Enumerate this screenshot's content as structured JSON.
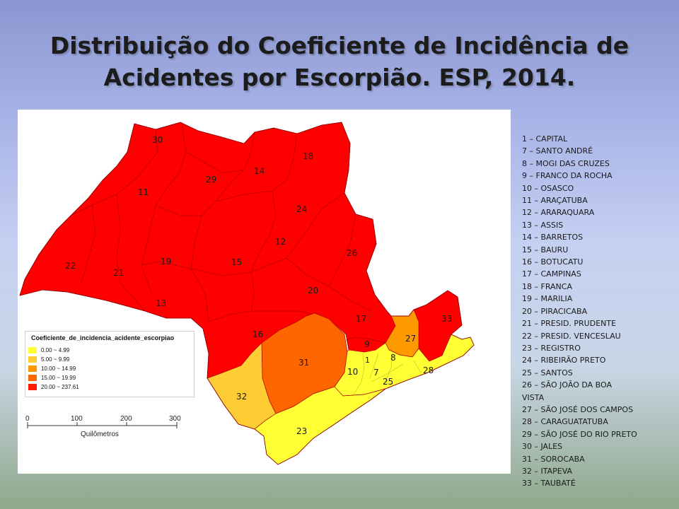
{
  "title": {
    "line1": "Distribuição do Coeficiente de Incidência de",
    "line2": "Acidentes por Escorpião. ESP, 2014."
  },
  "colors": {
    "class1": "#ffff33",
    "class2": "#ffcc33",
    "class3": "#ff9900",
    "class4": "#ff6600",
    "class5": "#ff0000",
    "border": "#b30000"
  },
  "legend": {
    "title": "Coeficiente_de_incidencia_acidente_escorpiao",
    "items": [
      {
        "label": "0.00 ~ 4.99",
        "color": "#ffff33"
      },
      {
        "label": "5.00 ~ 9.99",
        "color": "#ffcc33"
      },
      {
        "label": "10.00 ~ 14.99",
        "color": "#ff9900"
      },
      {
        "label": "15.00 ~ 19.99",
        "color": "#ff6600"
      },
      {
        "label": "20.00 ~ 237.61",
        "color": "#ff1a00"
      }
    ]
  },
  "scale_bar": {
    "ticks": [
      "0",
      "100",
      "200",
      "300"
    ],
    "unit": "Quilômetros"
  },
  "regions": [
    {
      "code": "30",
      "legend_class": 5
    },
    {
      "code": "29",
      "legend_class": 5
    },
    {
      "code": "14",
      "legend_class": 5
    },
    {
      "code": "18",
      "legend_class": 5
    },
    {
      "code": "11",
      "legend_class": 5
    },
    {
      "code": "24",
      "legend_class": 5
    },
    {
      "code": "12",
      "legend_class": 5
    },
    {
      "code": "26",
      "legend_class": 5
    },
    {
      "code": "22",
      "legend_class": 5
    },
    {
      "code": "21",
      "legend_class": 5
    },
    {
      "code": "19",
      "legend_class": 5
    },
    {
      "code": "15",
      "legend_class": 5
    },
    {
      "code": "20",
      "legend_class": 5
    },
    {
      "code": "13",
      "legend_class": 5
    },
    {
      "code": "17",
      "legend_class": 5
    },
    {
      "code": "33",
      "legend_class": 5
    },
    {
      "code": "16",
      "legend_class": 5
    },
    {
      "code": "27",
      "legend_class": 3
    },
    {
      "code": "9",
      "legend_class": 5
    },
    {
      "code": "31",
      "legend_class": 4
    },
    {
      "code": "8",
      "legend_class": 1
    },
    {
      "code": "1",
      "legend_class": 1
    },
    {
      "code": "10",
      "legend_class": 1
    },
    {
      "code": "7",
      "legend_class": 1
    },
    {
      "code": "25",
      "legend_class": 1
    },
    {
      "code": "28",
      "legend_class": 1
    },
    {
      "code": "32",
      "legend_class": 2
    },
    {
      "code": "23",
      "legend_class": 1
    }
  ],
  "region_list": [
    "1 – CAPITAL",
    "7 – SANTO ANDRÉ",
    "8 – MOGI DAS CRUZES",
    "9 – FRANCO DA ROCHA",
    "10 – OSASCO",
    "11 – ARAÇATUBA",
    "12 – ARARAQUARA",
    "13 – ASSIS",
    "14 – BARRETOS",
    "15 – BAURU",
    "16 – BOTUCATU",
    "17 – CAMPINAS",
    "18 – FRANCA",
    "19 – MARILIA",
    "20 – PIRACICABA",
    "21 – PRESID. PRUDENTE",
    "22 – PRESID. VENCESLAU",
    "23 – REGISTRO",
    "24 – RIBEIRÃO PRETO",
    "25 – SANTOS",
    "26 – SÃO JOÃO DA BOA",
    "VISTA",
    "27 – SÃO JOSÉ DOS CAMPOS",
    "28 – CARAGUATATUBA",
    "29 – SÃO JOSÉ DO RIO PRETO",
    "30 – JALES",
    "31 – SOROCABA",
    "32 – ITAPEVA",
    "33 – TAUBATÉ"
  ]
}
